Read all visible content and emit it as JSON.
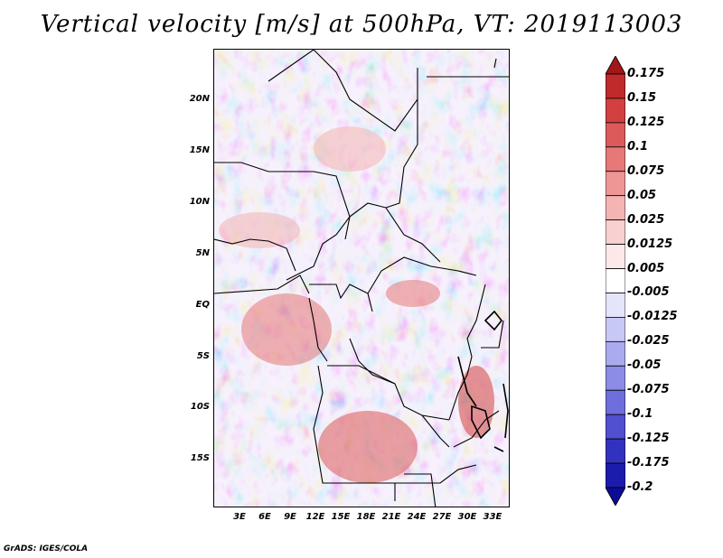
{
  "title": "Vertical velocity [m/s] at 500hPa, VT: 2019113003",
  "footer": "GrADS: IGES/COLA",
  "map": {
    "variable": "Vertical velocity",
    "units": "m/s",
    "level": "500hPa",
    "valid_time": "2019113003",
    "lat_labels": [
      "20N",
      "15N",
      "10N",
      "5N",
      "EQ",
      "5S",
      "10S",
      "15S"
    ],
    "lon_labels": [
      "3E",
      "6E",
      "9E",
      "12E",
      "15E",
      "18E",
      "21E",
      "24E",
      "27E",
      "30E",
      "33E"
    ]
  },
  "colorbar": {
    "labels": [
      "0.175",
      "0.15",
      "0.125",
      "0.1",
      "0.075",
      "0.05",
      "0.025",
      "0.0125",
      "0.005",
      "-0.005",
      "-0.0125",
      "-0.025",
      "-0.05",
      "-0.075",
      "-0.1",
      "-0.125",
      "-0.175",
      "-0.2"
    ],
    "colors": [
      "#a01818",
      "#c02a2a",
      "#d24040",
      "#dc5a5a",
      "#e67878",
      "#ee9696",
      "#f4b4b4",
      "#f8d0d0",
      "#fce8e8",
      "#ffffff",
      "#e4e4fa",
      "#c8c8f4",
      "#aaaaee",
      "#8c8ce6",
      "#6e6edc",
      "#5050d0",
      "#3232c0",
      "#1c1cac",
      "#0c0c96"
    ]
  }
}
